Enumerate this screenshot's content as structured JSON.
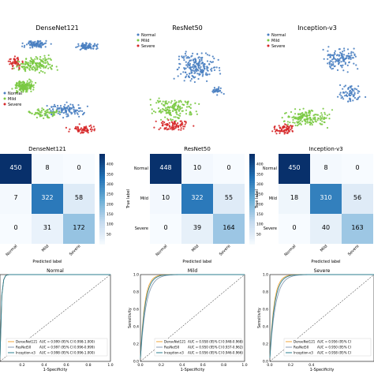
{
  "models": [
    "DenseNet121",
    "ResNet50",
    "Inception-v3"
  ],
  "classes": [
    "Normal",
    "Mild",
    "Severe"
  ],
  "colors": {
    "Normal": "#4a7fc1",
    "Mild": "#7ac943",
    "Severe": "#d62728"
  },
  "tsne_legend": [
    "Normal",
    "Mild",
    "Severe"
  ],
  "confusion": {
    "true_label": "True label",
    "predicted_label": "Predicted label",
    "colorbar_ticks": [
      50,
      100,
      150,
      200,
      250,
      300,
      350,
      400
    ],
    "matrices": [
      [
        [
          450,
          8,
          0
        ],
        [
          7,
          322,
          58
        ],
        [
          0,
          31,
          172
        ]
      ],
      [
        [
          448,
          10,
          0
        ],
        [
          10,
          322,
          55
        ],
        [
          0,
          39,
          164
        ]
      ],
      [
        [
          450,
          8,
          0
        ],
        [
          18,
          310,
          56
        ],
        [
          0,
          40,
          163
        ]
      ]
    ]
  },
  "chart_data": [
    {
      "type": "scatter",
      "title": "DenseNet121",
      "legend": [
        "Normal",
        "Mild",
        "Severe"
      ]
    },
    {
      "type": "scatter",
      "title": "ResNet50",
      "legend": [
        "Normal",
        "Mild",
        "Severe"
      ]
    },
    {
      "type": "scatter",
      "title": "Inception-v3",
      "legend": [
        "Normal",
        "Mild",
        "Severe"
      ]
    },
    {
      "type": "heatmap",
      "title": "DenseNet121",
      "categories": [
        "Normal",
        "Mild",
        "Severe"
      ],
      "values": [
        [
          450,
          8,
          0
        ],
        [
          7,
          322,
          58
        ],
        [
          0,
          31,
          172
        ]
      ],
      "xlabel": "Predicted label",
      "ylabel": "True label"
    },
    {
      "type": "heatmap",
      "title": "ResNet50",
      "categories": [
        "Normal",
        "Mild",
        "Severe"
      ],
      "values": [
        [
          448,
          10,
          0
        ],
        [
          10,
          322,
          55
        ],
        [
          0,
          39,
          164
        ]
      ],
      "xlabel": "Predicted label",
      "ylabel": "True label"
    },
    {
      "type": "heatmap",
      "title": "Inception-v3",
      "categories": [
        "Normal",
        "Mild",
        "Severe"
      ],
      "values": [
        [
          450,
          8,
          0
        ],
        [
          18,
          310,
          56
        ],
        [
          0,
          40,
          163
        ]
      ],
      "xlabel": "Predicted label",
      "ylabel": "True label"
    },
    {
      "type": "line",
      "title": "Normal",
      "xlabel": "1-Specificity",
      "ylabel": "",
      "xlim": [
        0,
        1
      ],
      "ylim": [
        0,
        1
      ],
      "xticks": [
        "0.2",
        "0.4",
        "0.6",
        "0.8",
        "1.0"
      ],
      "series": [
        {
          "name": "DenseNet121",
          "auc_text": "AUC = 0.999 (95% CI 0.998-1.000)"
        },
        {
          "name": "ResNet50",
          "auc_text": "AUC = 0.997 (95% CI 0.996-0.999)"
        },
        {
          "name": "Inception-v3",
          "auc_text": "AUC = 0.998 (95% CI 0.996-1.000)"
        }
      ]
    },
    {
      "type": "line",
      "title": "Mild",
      "xlabel": "1-Specificity",
      "ylabel": "Sensitivity",
      "xlim": [
        0,
        1
      ],
      "ylim": [
        0,
        1
      ],
      "xticks": [
        "0.0",
        "0.2",
        "0.4",
        "0.6",
        "0.8",
        "1.0"
      ],
      "yticks": [
        "0.0",
        "0.2",
        "0.4",
        "0.6",
        "0.8",
        "1.0"
      ],
      "series": [
        {
          "name": "DenseNet121",
          "auc_text": "AUC = 0.958 (95% CI 0.948-0.968)"
        },
        {
          "name": "ResNet50",
          "auc_text": "AUC = 0.950 (95% CI 0.937-0.962)"
        },
        {
          "name": "Inception-v3",
          "auc_text": "AUC = 0.956 (95% CI 0.946-0.966)"
        }
      ]
    },
    {
      "type": "line",
      "title": "Severe",
      "xlabel": "1-Specificity",
      "ylabel": "Sensitivity",
      "xlim": [
        0,
        1
      ],
      "ylim": [
        0,
        1
      ],
      "xticks": [
        "0.0",
        "0.2",
        "0.4"
      ],
      "yticks": [
        "0.0",
        "0.2",
        "0.4",
        "0.6",
        "0.8",
        "1.0"
      ],
      "series": [
        {
          "name": "DenseNet121",
          "auc_text": "AUC = 0.956 (95% CI"
        },
        {
          "name": "ResNet50",
          "auc_text": "AUC = 0.950 (95% CI"
        },
        {
          "name": "Inception-v3",
          "auc_text": "AUC = 0.958 (95% CI"
        }
      ]
    }
  ],
  "roc_colors": {
    "DenseNet121": "#f2a73b",
    "ResNet50": "#8a9eb5",
    "Inception-v3": "#2b7d8f"
  }
}
